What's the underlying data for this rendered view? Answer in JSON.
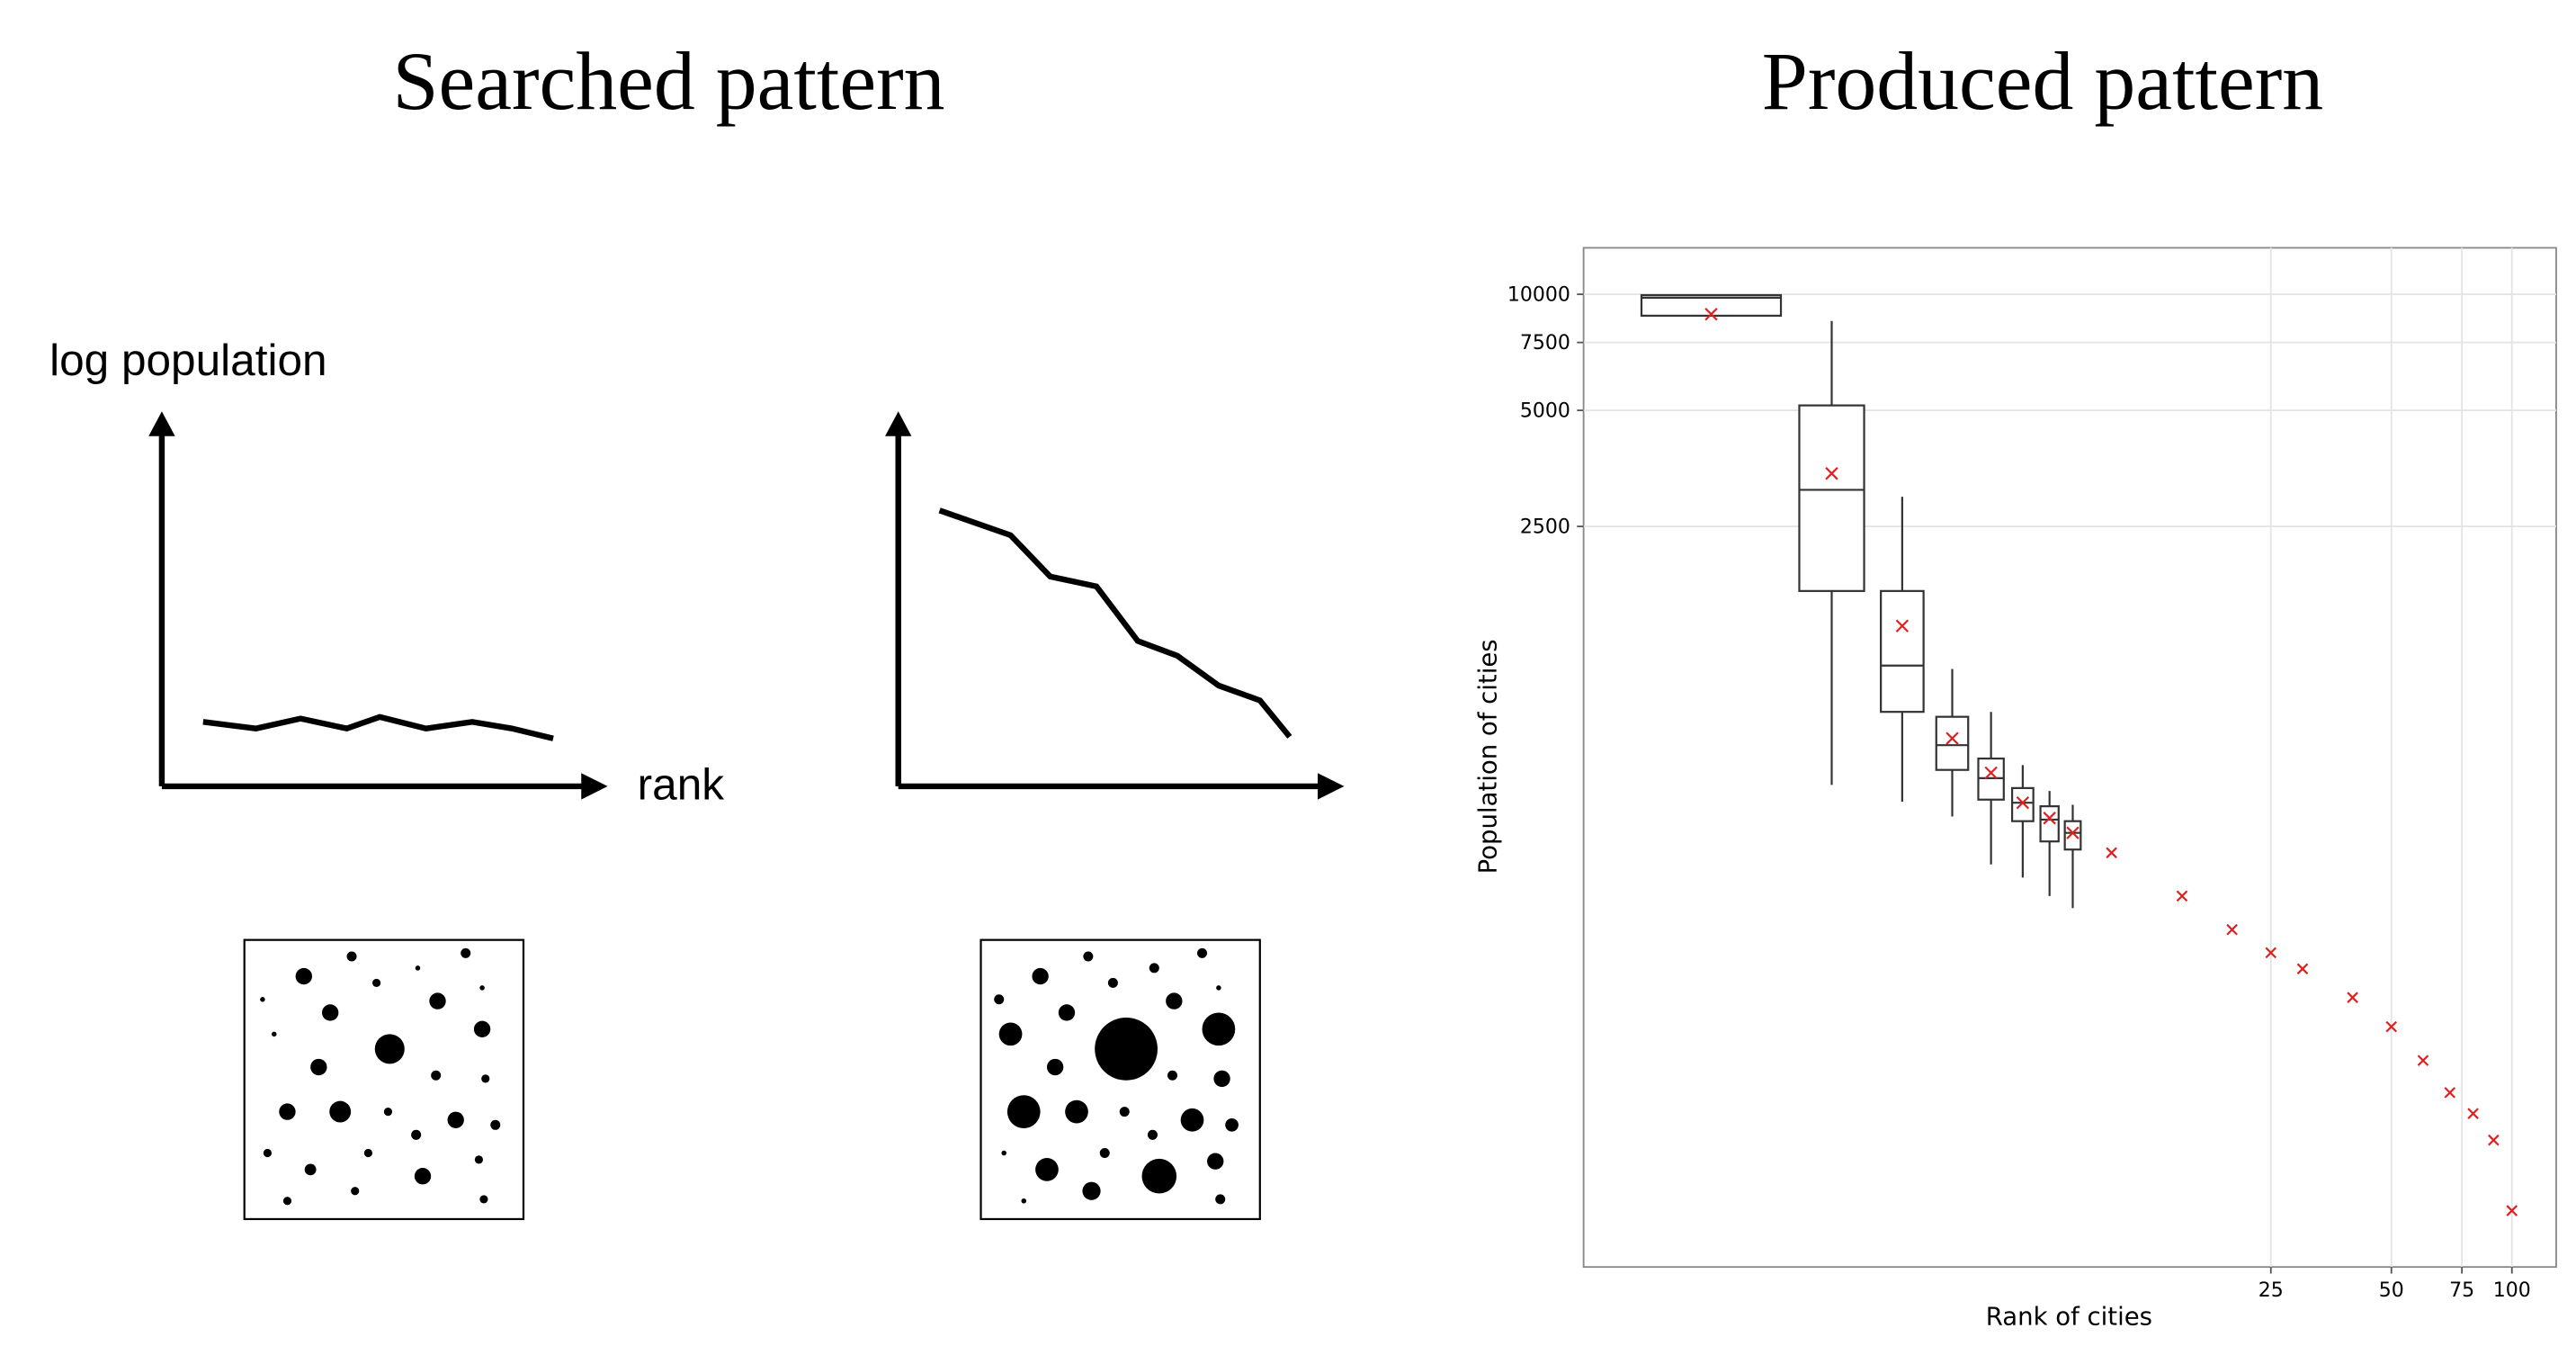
{
  "figure": {
    "left_title": "Searched pattern",
    "right_title": "Produced pattern",
    "sketch_y_label": "log population",
    "sketch_x_label": "rank"
  },
  "chart_data": {
    "type": "box",
    "x_label": "Rank of cities",
    "y_label": "Population of cities",
    "log_x": true,
    "log_y": true,
    "grid": true,
    "xlim": [
      0.48,
      129
    ],
    "ylim": [
      30,
      13200
    ],
    "xticks": [
      25,
      50,
      75,
      100
    ],
    "yticks": [
      2500,
      5000,
      7500,
      10000
    ],
    "box_color": "#333333",
    "mean_color": "#e02020",
    "boxes": [
      {
        "x": 1,
        "q1": 8800,
        "median": 9800,
        "q3": 9950,
        "mean": 8880
      },
      {
        "x": 2,
        "low": 534,
        "q1": 1700,
        "median": 3110,
        "q3": 5150,
        "high": 8530,
        "mean": 3430
      },
      {
        "x": 3,
        "low": 483,
        "q1": 826,
        "median": 1089,
        "q3": 1700,
        "high": 2985,
        "mean": 1380
      },
      {
        "x": 4,
        "low": 442,
        "q1": 584,
        "median": 677,
        "q3": 802,
        "high": 1067,
        "mean": 705
      },
      {
        "x": 5,
        "low": 332,
        "q1": 489,
        "median": 556,
        "q3": 625,
        "high": 826,
        "mean": 574
      },
      {
        "x": 6,
        "low": 307,
        "q1": 430,
        "median": 480,
        "q3": 524,
        "high": 601,
        "mean": 480
      },
      {
        "x": 7,
        "low": 275,
        "q1": 381,
        "median": 434,
        "q3": 470,
        "high": 515,
        "mean": 438
      },
      {
        "x": 8,
        "low": 256,
        "q1": 363,
        "median": 401,
        "q3": 430,
        "high": 474,
        "mean": 401
      }
    ],
    "means": {
      "x": [
        10,
        15,
        20,
        25,
        30,
        40,
        50,
        60,
        70,
        80,
        90,
        100
      ],
      "values": [
        356,
        275,
        225,
        196,
        178,
        150,
        126,
        103,
        85,
        75,
        64,
        42
      ]
    }
  }
}
